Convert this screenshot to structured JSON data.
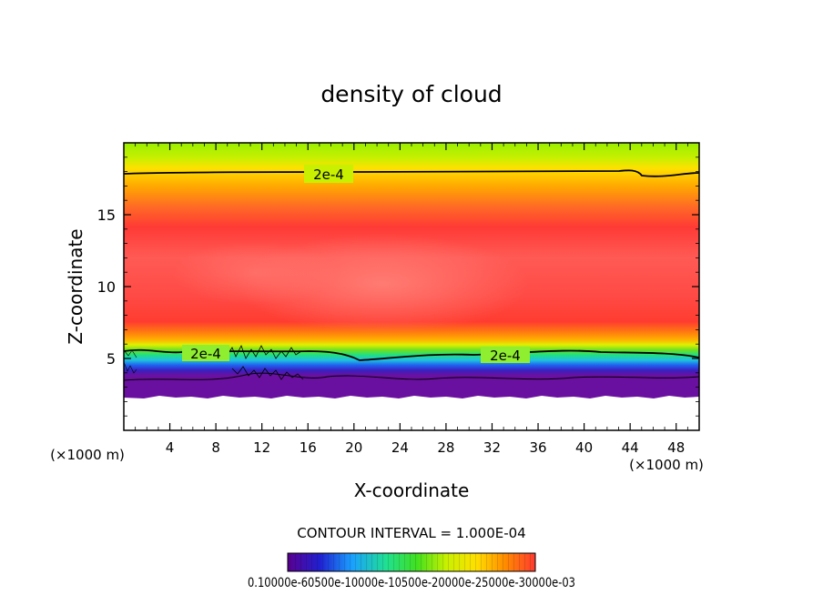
{
  "chart_data": {
    "type": "heatmap",
    "title": "density of cloud",
    "xlabel": "X-coordinate",
    "ylabel": "Z-coordinate",
    "x_unit": "(×1000 m)",
    "z_unit": "(×1000 m)",
    "xlim": [
      0,
      50
    ],
    "ylim": [
      0,
      20
    ],
    "x_ticks": [
      4,
      8,
      12,
      16,
      20,
      24,
      28,
      32,
      36,
      40,
      44,
      48
    ],
    "y_ticks": [
      5,
      10,
      15
    ],
    "contour_interval_text": "CONTOUR INTERVAL = 1.000E-04",
    "contour_label": "2e-4",
    "contour_levels": [
      0.0001,
      0.0002
    ],
    "colorbar_tick_text": "0.10000e-60500e-10000e-10500e-20000e-25000e-30000e-03",
    "colorbar_stops": [
      "#5a0090",
      "#2020d0",
      "#1aa0ff",
      "#20e090",
      "#40e020",
      "#c8f000",
      "#ffe000",
      "#ff8a00",
      "#ff3a30"
    ],
    "vertical_profile": [
      {
        "z": 2.4,
        "value": 3e-05
      },
      {
        "z": 3.0,
        "value": 8e-05
      },
      {
        "z": 4.2,
        "value": 0.00014
      },
      {
        "z": 5.3,
        "value": 0.0002
      },
      {
        "z": 7.5,
        "value": 0.00026
      },
      {
        "z": 10.0,
        "value": 0.00031
      },
      {
        "z": 13.0,
        "value": 0.0003
      },
      {
        "z": 15.5,
        "value": 0.00026
      },
      {
        "z": 17.7,
        "value": 0.0002
      },
      {
        "z": 19.5,
        "value": 0.00016
      }
    ]
  }
}
